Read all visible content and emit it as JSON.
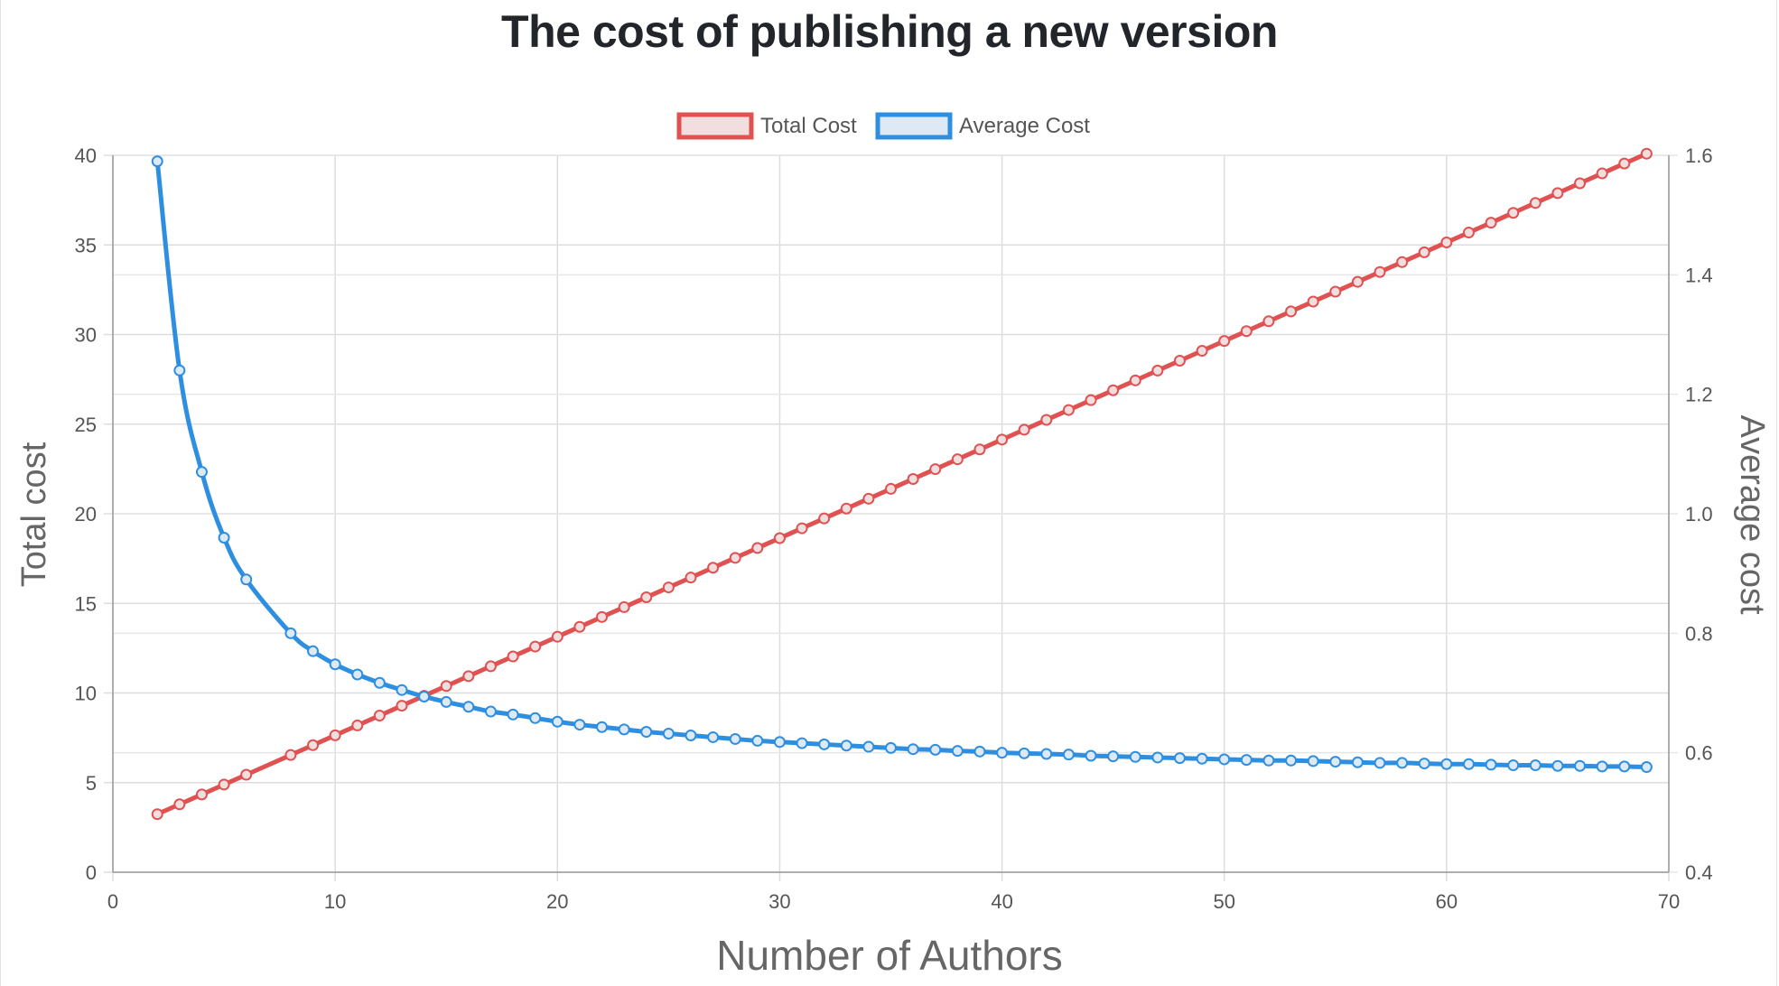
{
  "chart_data": {
    "type": "line",
    "title": "The cost of publishing a new version",
    "xlabel": "Number of Authors",
    "ylabel_left": "Total cost",
    "ylabel_right": "Average cost",
    "xlim": [
      0,
      70
    ],
    "x_ticks": [
      "0",
      "10",
      "20",
      "30",
      "40",
      "50",
      "60",
      "70"
    ],
    "ylim_left": [
      0,
      40
    ],
    "y_ticks_left": [
      "0",
      "5",
      "10",
      "15",
      "20",
      "25",
      "30",
      "35",
      "40"
    ],
    "ylim_right": [
      0.4,
      1.6
    ],
    "y_ticks_right": [
      "0.4",
      "0.6",
      "0.8",
      "1.0",
      "1.2",
      "1.4",
      "1.6"
    ],
    "grid": true,
    "legend_position": "top",
    "x": [
      2,
      3,
      4,
      5,
      6,
      8,
      9,
      10,
      11,
      12,
      13,
      14,
      15,
      16,
      17,
      18,
      19,
      20,
      21,
      22,
      23,
      24,
      25,
      26,
      27,
      28,
      29,
      30,
      31,
      32,
      33,
      34,
      35,
      36,
      37,
      38,
      39,
      40,
      41,
      42,
      43,
      44,
      45,
      46,
      47,
      48,
      49,
      50,
      51,
      52,
      53,
      54,
      55,
      56,
      57,
      58,
      59,
      60,
      61,
      62,
      63,
      64,
      65,
      66,
      67,
      68,
      69
    ],
    "series": [
      {
        "name": "Total Cost",
        "axis": "left",
        "color": "#e05252",
        "values": [
          3.24,
          3.79,
          4.34,
          4.89,
          5.44,
          6.54,
          7.09,
          7.64,
          8.19,
          8.74,
          9.29,
          9.84,
          10.39,
          10.94,
          11.49,
          12.04,
          12.59,
          13.14,
          13.69,
          14.24,
          14.79,
          15.34,
          15.89,
          16.44,
          16.99,
          17.54,
          18.09,
          18.64,
          19.19,
          19.74,
          20.29,
          20.84,
          21.39,
          21.94,
          22.49,
          23.04,
          23.59,
          24.14,
          24.69,
          25.24,
          25.79,
          26.34,
          26.89,
          27.44,
          27.99,
          28.54,
          29.09,
          29.64,
          30.19,
          30.74,
          31.29,
          31.84,
          32.39,
          32.94,
          33.49,
          34.04,
          34.59,
          35.14,
          35.69,
          36.24,
          36.79,
          37.34,
          37.89,
          38.44,
          38.99,
          39.54,
          40.09
        ]
      },
      {
        "name": "Average Cost",
        "axis": "right",
        "color": "#2e8fe0",
        "values": [
          1.59,
          1.24,
          1.07,
          0.96,
          0.89,
          0.8,
          0.77,
          0.748,
          0.731,
          0.717,
          0.705,
          0.694,
          0.685,
          0.677,
          0.669,
          0.664,
          0.658,
          0.652,
          0.647,
          0.643,
          0.639,
          0.635,
          0.632,
          0.629,
          0.626,
          0.623,
          0.62,
          0.618,
          0.616,
          0.614,
          0.612,
          0.61,
          0.608,
          0.606,
          0.605,
          0.603,
          0.602,
          0.6,
          0.599,
          0.598,
          0.597,
          0.595,
          0.594,
          0.593,
          0.592,
          0.591,
          0.59,
          0.589,
          0.588,
          0.587,
          0.587,
          0.586,
          0.585,
          0.584,
          0.583,
          0.583,
          0.582,
          0.581,
          0.581,
          0.58,
          0.579,
          0.579,
          0.578,
          0.578,
          0.577,
          0.577,
          0.576
        ]
      }
    ]
  }
}
